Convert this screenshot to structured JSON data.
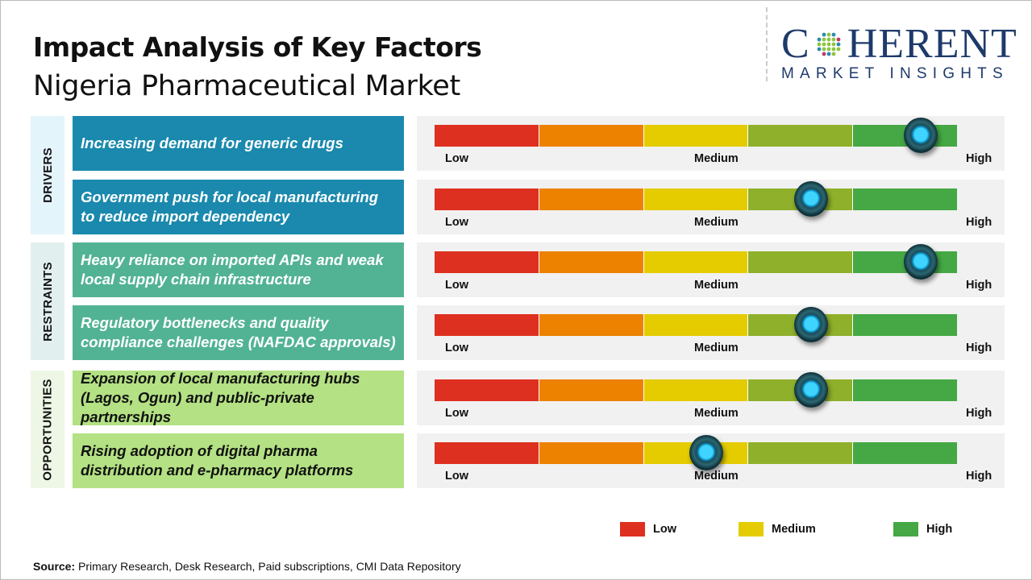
{
  "header": {
    "title": "Impact Analysis of Key Factors",
    "subtitle": "Nigeria Pharmaceutical Market"
  },
  "logo": {
    "top": "COHERENT",
    "bottom": "MARKET INSIGHTS"
  },
  "scale": {
    "low": "Low",
    "medium": "Medium",
    "high": "High"
  },
  "segment_colors": [
    "#de3020",
    "#ec8200",
    "#e4cc00",
    "#8fb02a",
    "#45a844"
  ],
  "categories": [
    {
      "label": "DRIVERS",
      "tab_color": "#e3f4fb",
      "box_color": "#1a89ad",
      "text_color": "#ffffff"
    },
    {
      "label": "RESTRAINTS",
      "tab_color": "#e2efef",
      "box_color": "#52b394",
      "text_color": "#ffffff"
    },
    {
      "label": "OPPORTUNITIES",
      "tab_color": "#eef7e6",
      "box_color": "#b3e183",
      "text_color": "#111111"
    }
  ],
  "factors": [
    {
      "category": 0,
      "text": "Increasing demand for generic drugs",
      "impact": 0.93
    },
    {
      "category": 0,
      "text": "Government push for local manufacturing to reduce import dependency",
      "impact": 0.72
    },
    {
      "category": 1,
      "text": "Heavy reliance on imported APIs and weak local supply chain infrastructure",
      "impact": 0.93
    },
    {
      "category": 1,
      "text": "Regulatory bottlenecks and quality compliance challenges (NAFDAC approvals)",
      "impact": 0.72
    },
    {
      "category": 2,
      "text": "Expansion of local manufacturing hubs (Lagos, Ogun) and public-private partnerships",
      "impact": 0.72
    },
    {
      "category": 2,
      "text": "Rising adoption of digital pharma distribution and e-pharmacy platforms",
      "impact": 0.52
    }
  ],
  "legend": [
    {
      "label": "Low",
      "color": "#de3020"
    },
    {
      "label": "Medium",
      "color": "#e4cc00"
    },
    {
      "label": "High",
      "color": "#45a844"
    }
  ],
  "source": {
    "label": "Source:",
    "text": " Primary Research, Desk Research, Paid subscriptions, CMI Data Repository"
  }
}
